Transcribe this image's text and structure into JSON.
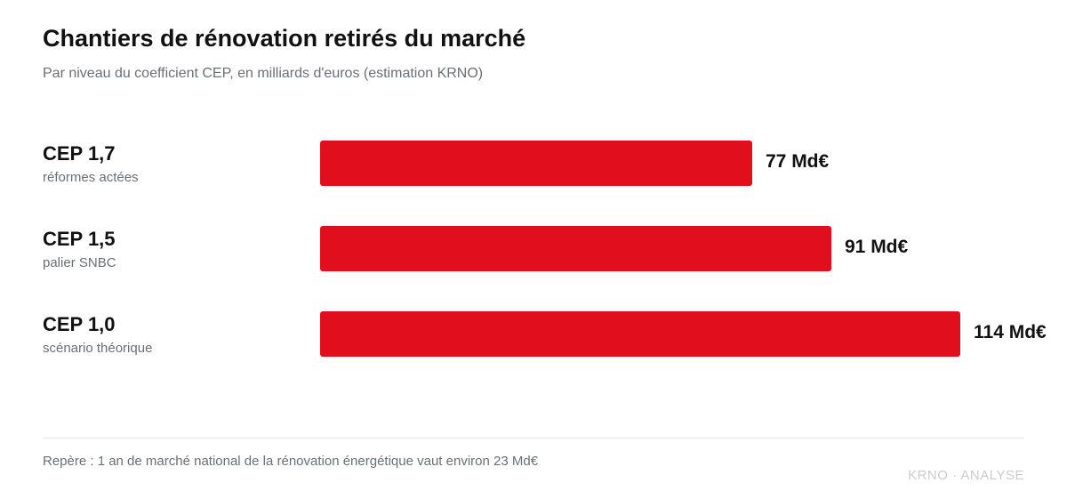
{
  "title": "Chantiers de rénovation retirés du marché",
  "subtitle": "Par niveau du coefficient CEP, en milliards d'euros (estimation KRNO)",
  "footnote": "Repère : 1 an de marché national de la rénovation énergétique vaut environ 23 Md€",
  "source": "KRNO · ANALYSE",
  "colors": {
    "bar": "#e10e1d",
    "title": "#111111",
    "muted": "#6b6f76",
    "source": "#c9cbcf"
  },
  "chart_data": {
    "type": "bar",
    "orientation": "horizontal",
    "title": "Chantiers de rénovation retirés du marché",
    "subtitle": "Par niveau du coefficient CEP, en milliards d'euros (estimation KRNO)",
    "unit": "Md€",
    "categories": [
      "CEP 1,7",
      "CEP 1,5",
      "CEP 1,0"
    ],
    "sublabels": [
      "réformes actées",
      "palier SNBC",
      "scénario théorique"
    ],
    "values": [
      77,
      91,
      114
    ],
    "value_labels": [
      "77 Md€",
      "91 Md€",
      "114 Md€"
    ],
    "xlim": [
      0,
      114
    ],
    "grid": false,
    "legend": "none"
  }
}
